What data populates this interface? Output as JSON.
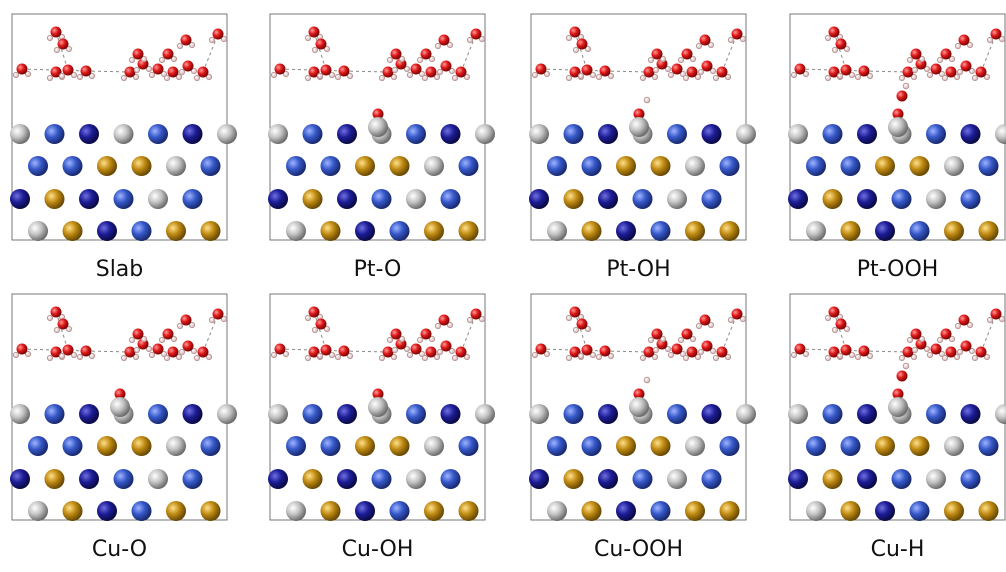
{
  "panels": [
    {
      "label": "Slab"
    },
    {
      "label": "Pt-O"
    },
    {
      "label": "Pt-OH"
    },
    {
      "label": "Pt-OOH"
    },
    {
      "label": "Cu-O"
    },
    {
      "label": "Cu-OH"
    },
    {
      "label": "Cu-OOH"
    },
    {
      "label": "Cu-H"
    }
  ]
}
